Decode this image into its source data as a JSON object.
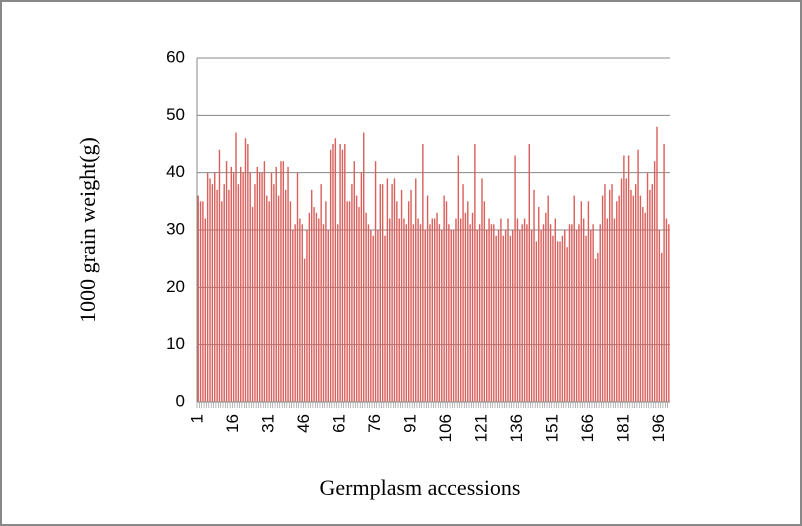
{
  "chart_data": {
    "type": "bar",
    "ylabel": "1000 grain weight(g)",
    "xlabel": "Germplasm accessions",
    "categories": [
      "1",
      null,
      null,
      null,
      null,
      null,
      null,
      null,
      null,
      null,
      null,
      null,
      null,
      null,
      null,
      "16",
      null,
      null,
      null,
      null,
      null,
      null,
      null,
      null,
      null,
      null,
      null,
      null,
      null,
      null,
      "31",
      null,
      null,
      null,
      null,
      null,
      null,
      null,
      null,
      null,
      null,
      null,
      null,
      null,
      null,
      "46",
      null,
      null,
      null,
      null,
      null,
      null,
      null,
      null,
      null,
      null,
      null,
      null,
      null,
      null,
      "61",
      null,
      null,
      null,
      null,
      null,
      null,
      null,
      null,
      null,
      null,
      null,
      null,
      null,
      null,
      "76",
      null,
      null,
      null,
      null,
      null,
      null,
      null,
      null,
      null,
      null,
      null,
      null,
      null,
      null,
      "91",
      null,
      null,
      null,
      null,
      null,
      null,
      null,
      null,
      null,
      null,
      null,
      null,
      null,
      null,
      "106",
      null,
      null,
      null,
      null,
      null,
      null,
      null,
      null,
      null,
      null,
      null,
      null,
      null,
      null,
      "121",
      null,
      null,
      null,
      null,
      null,
      null,
      null,
      null,
      null,
      null,
      null,
      null,
      null,
      null,
      "136",
      null,
      null,
      null,
      null,
      null,
      null,
      null,
      null,
      null,
      null,
      null,
      null,
      null,
      null,
      "151",
      null,
      null,
      null,
      null,
      null,
      null,
      null,
      null,
      null,
      null,
      null,
      null,
      null,
      null,
      "166",
      null,
      null,
      null,
      null,
      null,
      null,
      null,
      null,
      null,
      null,
      null,
      null,
      null,
      null,
      "181",
      null,
      null,
      null,
      null,
      null,
      null,
      null,
      null,
      null,
      null,
      null,
      null,
      null,
      null,
      "196",
      null,
      null,
      null,
      null
    ],
    "values": [
      36,
      35,
      35,
      32,
      40,
      39,
      38,
      40,
      37,
      44,
      35,
      38,
      42,
      37,
      41,
      40,
      47,
      38,
      41,
      40,
      46,
      45,
      40,
      34,
      38,
      41,
      40,
      40,
      42,
      36,
      35,
      40,
      38,
      41,
      36,
      42,
      42,
      37,
      41,
      35,
      30,
      31,
      40,
      32,
      31,
      25,
      30,
      33,
      37,
      34,
      33,
      32,
      38,
      31,
      35,
      30,
      44,
      45,
      46,
      31,
      45,
      44,
      45,
      35,
      35,
      38,
      42,
      36,
      34,
      40,
      47,
      33,
      31,
      30,
      29,
      42,
      30,
      38,
      38,
      29,
      39,
      32,
      38,
      39,
      35,
      32,
      37,
      32,
      31,
      35,
      37,
      31,
      39,
      32,
      31,
      45,
      30,
      36,
      31,
      32,
      32,
      33,
      31,
      30,
      36,
      35,
      31,
      30,
      30,
      32,
      43,
      32,
      38,
      33,
      35,
      31,
      33,
      45,
      30,
      31,
      39,
      35,
      30,
      32,
      31,
      31,
      29,
      30,
      32,
      29,
      30,
      32,
      29,
      30,
      43,
      32,
      30,
      31,
      32,
      31,
      45,
      30,
      37,
      28,
      34,
      30,
      31,
      33,
      36,
      31,
      29,
      32,
      28,
      28,
      29,
      30,
      27,
      31,
      31,
      36,
      30,
      31,
      35,
      32,
      29,
      35,
      30,
      31,
      25,
      26,
      31,
      36,
      38,
      32,
      37,
      38,
      32,
      35,
      36,
      39,
      43,
      39,
      43,
      37,
      36,
      38,
      44,
      36,
      34,
      33,
      40,
      37,
      38,
      42,
      48,
      30,
      26,
      45,
      32,
      31
    ],
    "color": "#d9605c",
    "ylim": [
      0,
      60
    ],
    "yticks": [
      0,
      10,
      20,
      30,
      40,
      50,
      60
    ],
    "grid": true
  }
}
